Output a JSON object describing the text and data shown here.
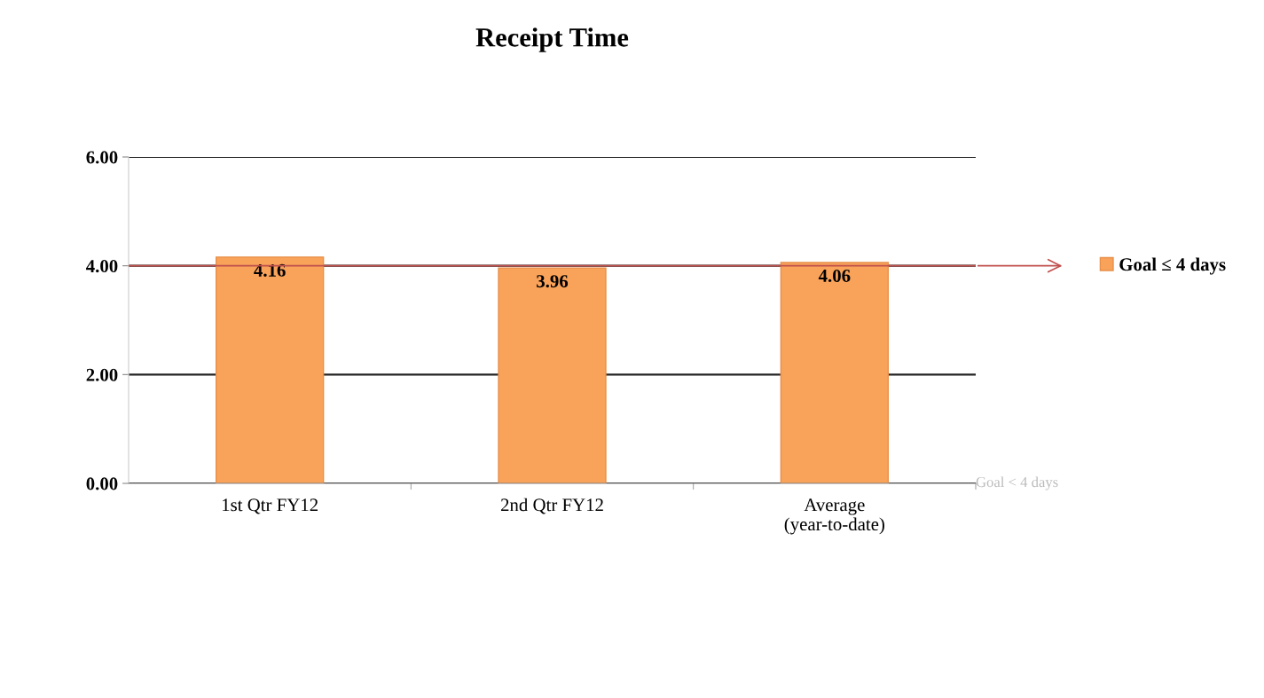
{
  "chart_data": {
    "type": "bar",
    "title": "Receipt Time",
    "categories": [
      "1st Qtr FY12",
      "2nd Qtr FY12",
      "Average\n(year-to-date)"
    ],
    "series": [
      {
        "name": "Goal ≤ 4 days",
        "color": "#f9a25a",
        "values": [
          4.16,
          3.96,
          4.06
        ]
      }
    ],
    "ylim": [
      0,
      6
    ],
    "yticks": [
      {
        "value": 0,
        "label": "0.00"
      },
      {
        "value": 2,
        "label": "2.00"
      },
      {
        "value": 4,
        "label": "4.00"
      },
      {
        "value": 6,
        "label": "6.00"
      }
    ],
    "grid": "y",
    "legend": "right",
    "data_labels": true,
    "ref_lines": [
      {
        "axis": "y",
        "value": 4,
        "color": "#c0504d"
      }
    ],
    "annotations": [
      "Goal < 4 days"
    ]
  }
}
